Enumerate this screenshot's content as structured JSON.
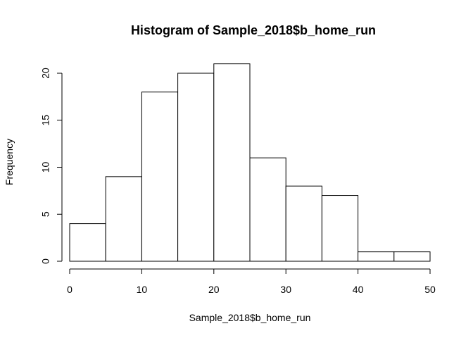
{
  "chart_data": {
    "type": "bar",
    "title": "Histogram of Sample_2018$b_home_run",
    "xlabel": "Sample_2018$b_home_run",
    "ylabel": "Frequency",
    "bins": [
      {
        "from": 0,
        "to": 5,
        "count": 4
      },
      {
        "from": 5,
        "to": 10,
        "count": 9
      },
      {
        "from": 10,
        "to": 15,
        "count": 18
      },
      {
        "from": 15,
        "to": 20,
        "count": 20
      },
      {
        "from": 20,
        "to": 25,
        "count": 21
      },
      {
        "from": 25,
        "to": 30,
        "count": 11
      },
      {
        "from": 30,
        "to": 35,
        "count": 8
      },
      {
        "from": 35,
        "to": 40,
        "count": 7
      },
      {
        "from": 40,
        "to": 45,
        "count": 1
      },
      {
        "from": 45,
        "to": 50,
        "count": 1
      }
    ],
    "xlim": [
      0,
      50
    ],
    "ylim": [
      0,
      21
    ],
    "x_ticks": [
      "0",
      "10",
      "20",
      "30",
      "40",
      "50"
    ],
    "y_ticks": [
      "0",
      "5",
      "10",
      "15",
      "20"
    ],
    "grid": false,
    "colors": {
      "bar_fill": "#ffffff",
      "bar_stroke": "#000000"
    }
  }
}
